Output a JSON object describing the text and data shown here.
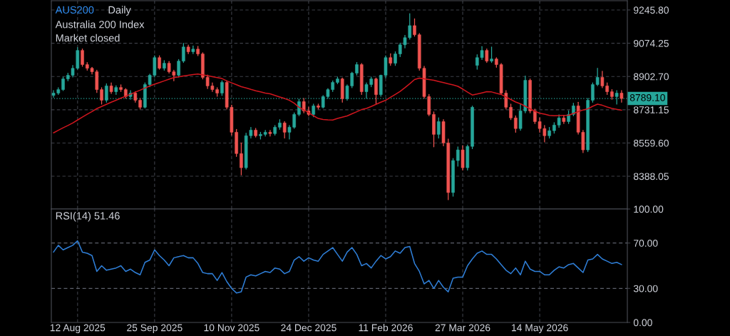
{
  "chart_data": [
    {
      "type": "candlestick",
      "title": "AUS200",
      "subtitle": "Daily",
      "annotations": [
        "Australia 200 Index",
        "Market closed"
      ],
      "categories": [
        null,
        null,
        null,
        null,
        null,
        null,
        null,
        null,
        null,
        null,
        null,
        null,
        null,
        null,
        null,
        null,
        null,
        null,
        null,
        null,
        null,
        null,
        null,
        null,
        null,
        null,
        null,
        null,
        null,
        null,
        null,
        null,
        null,
        null,
        null,
        null,
        null,
        null,
        null,
        null,
        null,
        null,
        null,
        null,
        null,
        null,
        null,
        null,
        null,
        null,
        null,
        null,
        null,
        null,
        null,
        null,
        null,
        null,
        null,
        null,
        null,
        null,
        null,
        null,
        null,
        null,
        null,
        null,
        null,
        null,
        null,
        null,
        null,
        null,
        null,
        null,
        null,
        null,
        null,
        null,
        null,
        null,
        null,
        null,
        null,
        null,
        null,
        null,
        null,
        null,
        null,
        null,
        null,
        null,
        null,
        null,
        null,
        null,
        null,
        null,
        null,
        null,
        null,
        null,
        null,
        null,
        null,
        null,
        null,
        null,
        null,
        null,
        null,
        null,
        null,
        null,
        null,
        null,
        null
      ],
      "ohlc": [
        [
          8805,
          8830,
          8795,
          8817
        ],
        [
          8817,
          8845,
          8810,
          8835
        ],
        [
          8835,
          8900,
          8830,
          8890
        ],
        [
          8890,
          8920,
          8880,
          8909
        ],
        [
          8909,
          8960,
          8900,
          8945
        ],
        [
          8945,
          9052,
          8940,
          9037
        ],
        [
          9037,
          9045,
          8955,
          8964
        ],
        [
          8964,
          8975,
          8935,
          8945
        ],
        [
          8945,
          8950,
          8915,
          8927
        ],
        [
          8927,
          8935,
          8820,
          8835
        ],
        [
          8835,
          8845,
          8760,
          8780
        ],
        [
          8780,
          8865,
          8770,
          8854
        ],
        [
          8854,
          8870,
          8815,
          8824
        ],
        [
          8824,
          8855,
          8810,
          8846
        ],
        [
          8846,
          8860,
          8825,
          8835
        ],
        [
          8835,
          8840,
          8790,
          8799
        ],
        [
          8799,
          8830,
          8785,
          8817
        ],
        [
          8817,
          8825,
          8770,
          8780
        ],
        [
          8780,
          8790,
          8735,
          8744
        ],
        [
          8744,
          8870,
          8740,
          8861
        ],
        [
          8861,
          8915,
          8850,
          8909
        ],
        [
          8909,
          9010,
          8900,
          9000
        ],
        [
          9000,
          9010,
          8940,
          8945
        ],
        [
          8945,
          8985,
          8935,
          8971
        ],
        [
          8971,
          8980,
          8920,
          8927
        ],
        [
          8927,
          8935,
          8880,
          8909
        ],
        [
          8909,
          8990,
          8900,
          8982
        ],
        [
          8982,
          9074,
          8975,
          9055
        ],
        [
          9055,
          9065,
          9020,
          9030
        ],
        [
          9030,
          9060,
          9020,
          9044
        ],
        [
          9044,
          9058,
          9010,
          9019
        ],
        [
          9019,
          9025,
          8890,
          8898
        ],
        [
          8898,
          8910,
          8840,
          8854
        ],
        [
          8854,
          8870,
          8825,
          8835
        ],
        [
          8835,
          8845,
          8800,
          8817
        ],
        [
          8817,
          8880,
          8805,
          8872
        ],
        [
          8872,
          8880,
          8735,
          8744
        ],
        [
          8744,
          8755,
          8600,
          8615
        ],
        [
          8615,
          8630,
          8490,
          8505
        ],
        [
          8505,
          8560,
          8395,
          8432
        ],
        [
          8432,
          8610,
          8425,
          8597
        ],
        [
          8597,
          8640,
          8585,
          8626
        ],
        [
          8626,
          8635,
          8590,
          8597
        ],
        [
          8597,
          8615,
          8580,
          8604
        ],
        [
          8604,
          8625,
          8595,
          8615
        ],
        [
          8615,
          8625,
          8595,
          8608
        ],
        [
          8608,
          8650,
          8600,
          8641
        ],
        [
          8641,
          8680,
          8630,
          8663
        ],
        [
          8663,
          8670,
          8585,
          8615
        ],
        [
          8615,
          8650,
          8580,
          8641
        ],
        [
          8641,
          8715,
          8635,
          8707
        ],
        [
          8707,
          8785,
          8700,
          8773
        ],
        [
          8773,
          8790,
          8715,
          8725
        ],
        [
          8725,
          8745,
          8700,
          8707
        ],
        [
          8707,
          8760,
          8695,
          8751
        ],
        [
          8751,
          8760,
          8735,
          8744
        ],
        [
          8744,
          8805,
          8740,
          8799
        ],
        [
          8799,
          8840,
          8790,
          8835
        ],
        [
          8835,
          8880,
          8825,
          8872
        ],
        [
          8872,
          8900,
          8865,
          8890
        ],
        [
          8890,
          8895,
          8770,
          8788
        ],
        [
          8788,
          8860,
          8780,
          8854
        ],
        [
          8854,
          8925,
          8845,
          8920
        ],
        [
          8920,
          8975,
          8910,
          8964
        ],
        [
          8964,
          8970,
          8810,
          8824
        ],
        [
          8824,
          8870,
          8790,
          8861
        ],
        [
          8861,
          8900,
          8850,
          8890
        ],
        [
          8890,
          8895,
          8760,
          8809
        ],
        [
          8809,
          8910,
          8800,
          8909
        ],
        [
          8909,
          9010,
          8895,
          9000
        ],
        [
          9000,
          9020,
          8960,
          8971
        ],
        [
          8971,
          9030,
          8960,
          9019
        ],
        [
          9019,
          9075,
          9005,
          9066
        ],
        [
          9066,
          9115,
          9050,
          9103
        ],
        [
          9103,
          9227,
          9095,
          9165
        ],
        [
          9165,
          9200,
          9110,
          9118
        ],
        [
          9118,
          9125,
          8935,
          8945
        ],
        [
          8945,
          8955,
          8790,
          8799
        ],
        [
          8799,
          8810,
          8700,
          8707
        ],
        [
          8707,
          8720,
          8540,
          8604
        ],
        [
          8604,
          8690,
          8585,
          8670
        ],
        [
          8670,
          8680,
          8545,
          8560
        ],
        [
          8560,
          8580,
          8267,
          8304
        ],
        [
          8304,
          8480,
          8285,
          8469
        ],
        [
          8469,
          8540,
          8440,
          8524
        ],
        [
          8524,
          8545,
          8420,
          8432
        ],
        [
          8432,
          8550,
          8420,
          8542
        ],
        [
          8542,
          8750,
          8530,
          8744
        ],
        [
          8960,
          9015,
          8940,
          9000
        ],
        [
          9000,
          9057,
          8990,
          9037
        ],
        [
          9037,
          9045,
          8975,
          8982
        ],
        [
          8982,
          9055,
          8975,
          8993
        ],
        [
          8993,
          9000,
          8950,
          8964
        ],
        [
          8964,
          8970,
          8810,
          8817
        ],
        [
          8817,
          8830,
          8735,
          8744
        ],
        [
          8744,
          8760,
          8680,
          8689
        ],
        [
          8689,
          8700,
          8615,
          8634
        ],
        [
          8634,
          8760,
          8625,
          8725
        ],
        [
          8725,
          8905,
          8715,
          8883
        ],
        [
          8883,
          8890,
          8715,
          8725
        ],
        [
          8725,
          8735,
          8660,
          8670
        ],
        [
          8670,
          8690,
          8615,
          8634
        ],
        [
          8634,
          8650,
          8565,
          8597
        ],
        [
          8597,
          8640,
          8585,
          8623
        ],
        [
          8623,
          8665,
          8610,
          8652
        ],
        [
          8652,
          8705,
          8640,
          8689
        ],
        [
          8689,
          8700,
          8660,
          8670
        ],
        [
          8670,
          8725,
          8660,
          8707
        ],
        [
          8707,
          8765,
          8700,
          8751
        ],
        [
          8751,
          8770,
          8605,
          8615
        ],
        [
          8615,
          8625,
          8510,
          8524
        ],
        [
          8524,
          8790,
          8515,
          8780
        ],
        [
          8780,
          8870,
          8770,
          8861
        ],
        [
          8861,
          8945,
          8855,
          8898
        ],
        [
          8898,
          8930,
          8845,
          8854
        ],
        [
          8854,
          8870,
          8810,
          8824
        ],
        [
          8824,
          8835,
          8785,
          8799
        ],
        [
          8799,
          8830,
          8760,
          8817
        ],
        [
          8817,
          8830,
          8770,
          8789.1
        ]
      ],
      "colors": [
        "#26a69a",
        "#26a69a",
        "#26a69a",
        "#26a69a",
        "#26a69a",
        "#26a69a",
        "#ef5350",
        "#ef5350",
        "#ef5350",
        "#ef5350",
        "#ef5350",
        "#26a69a",
        "#ef5350",
        "#26a69a",
        "#ef5350",
        "#ef5350",
        "#26a69a",
        "#ef5350",
        "#ef5350",
        "#26a69a",
        "#26a69a",
        "#26a69a",
        "#ef5350",
        "#26a69a",
        "#ef5350",
        "#ef5350",
        "#26a69a",
        "#26a69a",
        "#ef5350",
        "#26a69a",
        "#ef5350",
        "#ef5350",
        "#ef5350",
        "#ef5350",
        "#ef5350",
        "#26a69a",
        "#ef5350",
        "#ef5350",
        "#ef5350",
        "#ef5350",
        "#26a69a",
        "#26a69a",
        "#ef5350",
        "#26a69a",
        "#26a69a",
        "#ef5350",
        "#26a69a",
        "#26a69a",
        "#ef5350",
        "#26a69a",
        "#26a69a",
        "#26a69a",
        "#ef5350",
        "#ef5350",
        "#26a69a",
        "#ef5350",
        "#26a69a",
        "#26a69a",
        "#26a69a",
        "#26a69a",
        "#ef5350",
        "#26a69a",
        "#26a69a",
        "#26a69a",
        "#ef5350",
        "#26a69a",
        "#26a69a",
        "#ef5350",
        "#26a69a",
        "#26a69a",
        "#ef5350",
        "#26a69a",
        "#26a69a",
        "#26a69a",
        "#26a69a",
        "#ef5350",
        "#ef5350",
        "#ef5350",
        "#ef5350",
        "#ef5350",
        "#26a69a",
        "#ef5350",
        "#ef5350",
        "#26a69a",
        "#26a69a",
        "#ef5350",
        "#26a69a",
        "#26a69a",
        "#26a69a",
        "#26a69a",
        "#ef5350",
        "#26a69a",
        "#ef5350",
        "#ef5350",
        "#ef5350",
        "#ef5350",
        "#ef5350",
        "#26a69a",
        "#26a69a",
        "#ef5350",
        "#ef5350",
        "#ef5350",
        "#ef5350",
        "#26a69a",
        "#26a69a",
        "#26a69a",
        "#ef5350",
        "#26a69a",
        "#26a69a",
        "#ef5350",
        "#ef5350",
        "#26a69a",
        "#26a69a",
        "#26a69a",
        "#ef5350",
        "#ef5350",
        "#ef5350",
        "#26a69a",
        "#ef5350"
      ],
      "series": [
        {
          "type": "line",
          "color": "#d0161e",
          "values": [
            8612,
            8625,
            8638,
            8650,
            8663,
            8678,
            8693,
            8708,
            8722,
            8737,
            8748,
            8759,
            8770,
            8780,
            8791,
            8801,
            8811,
            8822,
            8832,
            8843,
            8854,
            8863,
            8871,
            8880,
            8889,
            8897,
            8901,
            8905,
            8909,
            8913,
            8915,
            8911,
            8907,
            8902,
            8897,
            8892,
            8880,
            8870,
            8860,
            8850,
            8844,
            8836,
            8829,
            8823,
            8817,
            8813,
            8805,
            8797,
            8789,
            8780,
            8765,
            8744,
            8730,
            8716,
            8700,
            8686,
            8681,
            8679,
            8678,
            8686,
            8693,
            8699,
            8710,
            8721,
            8732,
            8738,
            8748,
            8759,
            8770,
            8780,
            8795,
            8810,
            8826,
            8845,
            8865,
            8887,
            8894,
            8891,
            8887,
            8883,
            8877,
            8871,
            8865,
            8859,
            8852,
            8838,
            8822,
            8807,
            8812,
            8818,
            8824,
            8823,
            8816,
            8810,
            8797,
            8784,
            8771,
            8762,
            8749,
            8736,
            8723,
            8713,
            8708,
            8702,
            8700,
            8701,
            8702,
            8703,
            8712,
            8721,
            8730,
            8736,
            8749,
            8760,
            8754,
            8745,
            8738,
            8733,
            8729
          ]
        }
      ],
      "ylim": [
        8219,
        9293.5
      ],
      "yticks": [
        {
          "value": 9245.8,
          "label": "9245.80"
        },
        {
          "value": 9074.25,
          "label": "9074.25"
        },
        {
          "value": 8902.7,
          "label": "8902.70"
        },
        {
          "value": 8731.15,
          "label": "8731.15"
        },
        {
          "value": 8559.6,
          "label": "8559.60"
        },
        {
          "value": 8388.05,
          "label": "8388.05"
        }
      ],
      "ref_lines": [
        {
          "axis": "y",
          "value": 8789.1,
          "label": "8789.10",
          "color": "#26a69a",
          "line_style": "dotted"
        }
      ],
      "grid": true,
      "tick_labels": "y"
    },
    {
      "type": "line",
      "title": "RSI(14) 51.46",
      "categories": [
        null,
        null,
        null,
        null,
        null,
        "12 Aug 2025",
        null,
        null,
        null,
        null,
        null,
        null,
        null,
        null,
        null,
        null,
        null,
        null,
        null,
        null,
        null,
        "25 Sep 2025",
        null,
        null,
        null,
        null,
        null,
        null,
        null,
        null,
        null,
        null,
        null,
        null,
        null,
        null,
        null,
        "10 Nov 2025",
        null,
        null,
        null,
        null,
        null,
        null,
        null,
        null,
        null,
        null,
        null,
        null,
        null,
        null,
        null,
        "24 Dec 2025",
        null,
        null,
        null,
        null,
        null,
        null,
        null,
        null,
        null,
        null,
        null,
        null,
        null,
        null,
        null,
        "11 Feb 2026",
        null,
        null,
        null,
        null,
        null,
        null,
        null,
        null,
        null,
        null,
        null,
        null,
        null,
        null,
        null,
        "27 Mar 2026",
        null,
        null,
        null,
        null,
        null,
        null,
        null,
        null,
        null,
        null,
        null,
        null,
        null,
        null,
        null,
        "14 May 2026",
        null,
        null,
        null,
        null,
        null,
        null,
        null,
        null,
        null,
        null,
        null,
        null,
        null,
        null,
        null,
        null,
        null
      ],
      "series": [
        {
          "color": "#2f7fd8",
          "values": [
            62,
            68,
            64,
            66,
            68,
            72,
            62,
            61,
            59,
            45,
            50,
            46,
            47,
            48,
            50,
            45,
            47,
            44,
            42,
            53,
            55,
            64,
            59,
            55,
            50,
            57,
            58,
            59,
            57,
            57,
            52,
            44,
            43,
            43,
            37,
            44,
            36,
            30,
            26,
            27,
            40,
            42,
            41,
            43,
            45,
            44,
            48,
            47,
            43,
            45,
            55,
            58,
            54,
            57,
            55,
            54,
            60,
            63,
            66,
            60,
            54,
            62,
            66,
            60,
            50,
            52,
            48,
            54,
            59,
            56,
            58,
            63,
            61,
            66,
            67,
            52,
            45,
            34,
            37,
            30,
            37,
            31,
            27,
            39,
            40,
            40,
            50,
            56,
            61,
            63,
            60,
            60,
            56,
            51,
            46,
            43,
            48,
            42,
            54,
            47,
            45,
            45,
            42,
            42,
            46,
            49,
            48,
            51,
            52,
            48,
            44,
            55,
            56,
            60,
            56,
            54,
            52,
            53,
            51
          ]
        }
      ],
      "ylim": [
        0,
        100
      ],
      "yticks": [
        {
          "value": 100,
          "label": "100.00"
        },
        {
          "value": 70,
          "label": "70.00"
        },
        {
          "value": 30,
          "label": "30.00"
        },
        {
          "value": 0,
          "label": "0.00"
        }
      ],
      "ref_lines": [
        {
          "axis": "y",
          "value": 70,
          "color": "#5d606b",
          "line_style": "dashed"
        },
        {
          "axis": "y",
          "value": 30,
          "color": "#5d606b",
          "line_style": "dashed"
        }
      ],
      "grid": "x"
    }
  ]
}
